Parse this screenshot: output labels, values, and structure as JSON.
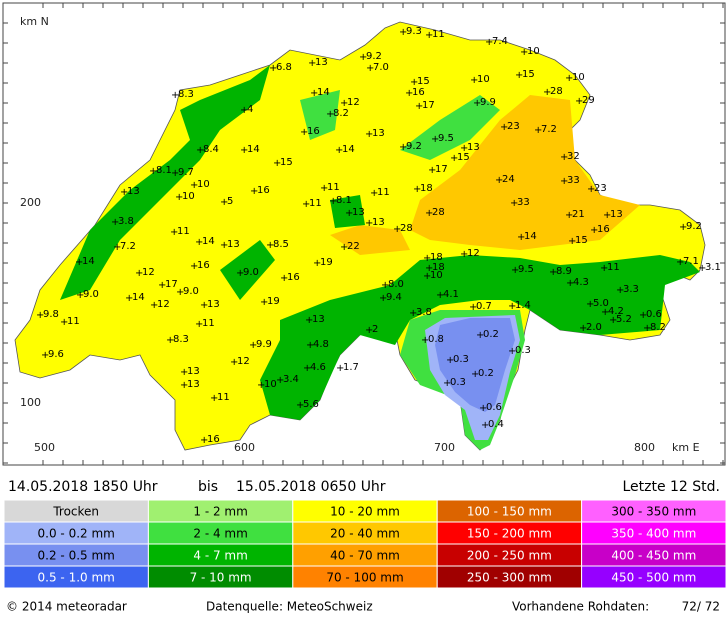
{
  "map": {
    "axis": {
      "y_title": "km N",
      "y_labels": [
        "200",
        "100"
      ],
      "x_labels": [
        "500",
        "600",
        "700",
        "800"
      ],
      "x_title": "km E"
    },
    "stations": [
      "9.3",
      "11",
      "7.4",
      "10",
      "9.2",
      "13",
      "6.8",
      "7.0",
      "15",
      "10",
      "15",
      "10",
      "16",
      "14",
      "12",
      "8.3",
      "28",
      "29",
      "17",
      "9.9",
      "4",
      "8.2",
      "23",
      "7.2",
      "16",
      "13",
      "9.5",
      "14",
      "9.2",
      "13",
      "15",
      "14",
      "8.4",
      "32",
      "15",
      "8.1",
      "9.7",
      "17",
      "24",
      "33",
      "10",
      "11",
      "11",
      "18",
      "23",
      "13",
      "16",
      "10",
      "5",
      "11",
      "8.1",
      "13",
      "33",
      "28",
      "21",
      "13",
      "3.8",
      "11",
      "13",
      "28",
      "16",
      "9.2",
      "7.2",
      "14",
      "13",
      "8.5",
      "22",
      "14",
      "15",
      "12",
      "14",
      "18",
      "18",
      "19",
      "16",
      "9.0",
      "12",
      "10",
      "16",
      "9.5",
      "11",
      "7.1",
      "3.1",
      "8.9",
      "17",
      "9.0",
      "14",
      "9.0",
      "4.3",
      "8.0",
      "13",
      "19",
      "9.4",
      "4.1",
      "3.3",
      "12",
      "0.7",
      "1.4",
      "5.0",
      "9.8",
      "11",
      "13",
      "3.8",
      "4.2",
      "5.2",
      "0.6",
      "11",
      "2",
      "2.0",
      "8.2",
      "0.2",
      "8.3",
      "4.8",
      "9.9",
      "0.8",
      "0.3",
      "9.6",
      "0.3",
      "12",
      "4.6",
      "1.7",
      "13",
      "0.2",
      "3.4",
      "0.3",
      "13",
      "10",
      "11",
      "5.6",
      "0.6",
      "0.4",
      "16"
    ]
  },
  "period": {
    "from": "14.05.2018  1850  Uhr",
    "bis": "bis",
    "to": "15.05.2018  0650  Uhr",
    "window": "Letzte  12  Std."
  },
  "legend": [
    [
      {
        "label": "Trocken",
        "color": "#d8d8d8"
      },
      {
        "label": "1 - 2 mm",
        "color": "#a0f070"
      },
      {
        "label": "10 - 20 mm",
        "color": "#ffff00"
      },
      {
        "label": "100 - 150 mm",
        "color": "#dc6400"
      },
      {
        "label": "300 - 350 mm",
        "color": "#ff60ff"
      }
    ],
    [
      {
        "label": "0.0 - 0.2 mm",
        "color": "#a0b4f8"
      },
      {
        "label": "2 - 4 mm",
        "color": "#40e040"
      },
      {
        "label": "20 - 40 mm",
        "color": "#ffc800"
      },
      {
        "label": "150 - 200 mm",
        "color": "#ff0000"
      },
      {
        "label": "350 - 400 mm",
        "color": "#ff00ff"
      }
    ],
    [
      {
        "label": "0.2 - 0.5 mm",
        "color": "#7890f0"
      },
      {
        "label": "4 - 7 mm",
        "color": "#00b400"
      },
      {
        "label": "40 - 70 mm",
        "color": "#ffa000"
      },
      {
        "label": "200 - 250 mm",
        "color": "#c80000"
      },
      {
        "label": "400 - 450 mm",
        "color": "#c800c8"
      }
    ],
    [
      {
        "label": "0.5 - 1.0 mm",
        "color": "#3c64f0"
      },
      {
        "label": "7 - 10 mm",
        "color": "#008c00"
      },
      {
        "label": "70 - 100 mm",
        "color": "#ff8200"
      },
      {
        "label": "250 - 300 mm",
        "color": "#a00000"
      },
      {
        "label": "450 - 500 mm",
        "color": "#9600ff"
      }
    ]
  ],
  "footer": {
    "copyright": "©  2014  meteoradar",
    "source": "Datenquelle: MeteoSchweiz",
    "raw_label": "Vorhandene Rohdaten:",
    "raw_value": "72/ 72"
  }
}
